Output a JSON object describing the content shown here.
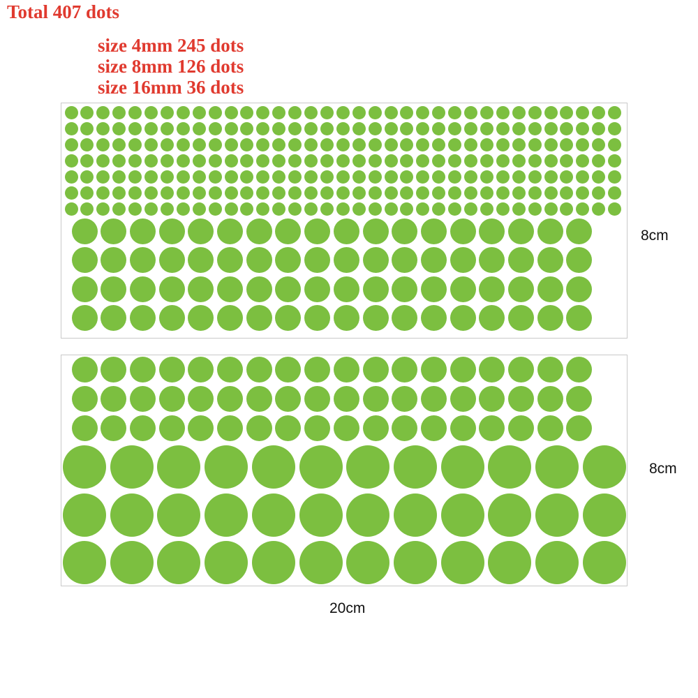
{
  "header": {
    "total_label": "Total 407 dots",
    "sizes": [
      "size 4mm 245 dots",
      "size 8mm 126 dots",
      "size 16mm 36 dots"
    ]
  },
  "dimensions": {
    "sheet1_height": "8cm",
    "sheet2_height": "8cm",
    "width": "20cm"
  },
  "colors": {
    "dot": "#7cbf40",
    "heading": "#e03a2f"
  },
  "dot_counts": {
    "size_4mm": 245,
    "size_8mm": 126,
    "size_16mm": 36
  },
  "dot_grids": {
    "sheet1_4mm": {
      "rows": 7,
      "cols": 35
    },
    "sheet1_8mm": {
      "rows": 4,
      "cols": 18
    },
    "sheet2_8mm": {
      "rows": 3,
      "cols": 18
    },
    "sheet2_16mm": {
      "rows": 3,
      "cols": 12
    }
  }
}
